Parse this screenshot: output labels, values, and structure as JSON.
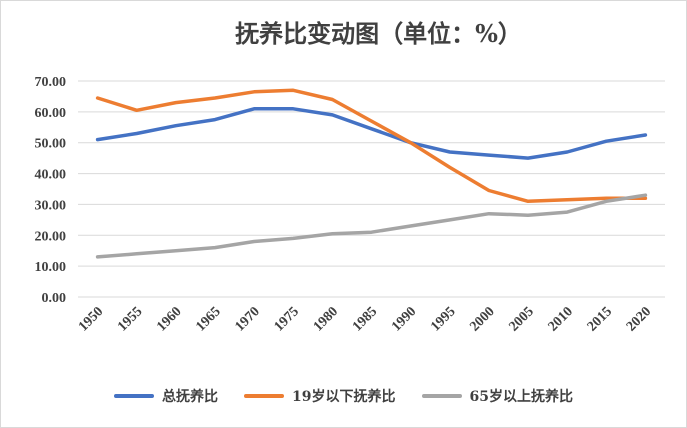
{
  "chart_data": {
    "type": "line",
    "title": "抚养比变动图（单位：%）",
    "categories": [
      "1950",
      "1955",
      "1960",
      "1965",
      "1970",
      "1975",
      "1980",
      "1985",
      "1990",
      "1995",
      "2000",
      "2005",
      "2010",
      "2015",
      "2020"
    ],
    "ylim": [
      0,
      70
    ],
    "yticks": [
      "0.00",
      "10.00",
      "20.00",
      "30.00",
      "40.00",
      "50.00",
      "60.00",
      "70.00"
    ],
    "grid": true,
    "legend_position": "bottom",
    "series": [
      {
        "name": "总抚养比",
        "color": "#4472c4",
        "values": [
          51.0,
          53.0,
          55.5,
          57.5,
          61.0,
          61.0,
          59.0,
          54.5,
          50.0,
          47.0,
          46.0,
          45.0,
          47.0,
          50.5,
          52.5
        ]
      },
      {
        "name": "19岁以下抚养比",
        "color": "#ed7d31",
        "values": [
          64.5,
          60.5,
          63.0,
          64.5,
          66.5,
          67.0,
          64.0,
          57.0,
          50.0,
          42.0,
          34.5,
          31.0,
          31.5,
          32.0,
          32.0
        ]
      },
      {
        "name": "65岁以上抚养比",
        "color": "#a5a5a5",
        "values": [
          13.0,
          14.0,
          15.0,
          16.0,
          18.0,
          19.0,
          20.5,
          21.0,
          23.0,
          25.0,
          27.0,
          26.5,
          27.5,
          31.0,
          33.0
        ]
      }
    ]
  }
}
